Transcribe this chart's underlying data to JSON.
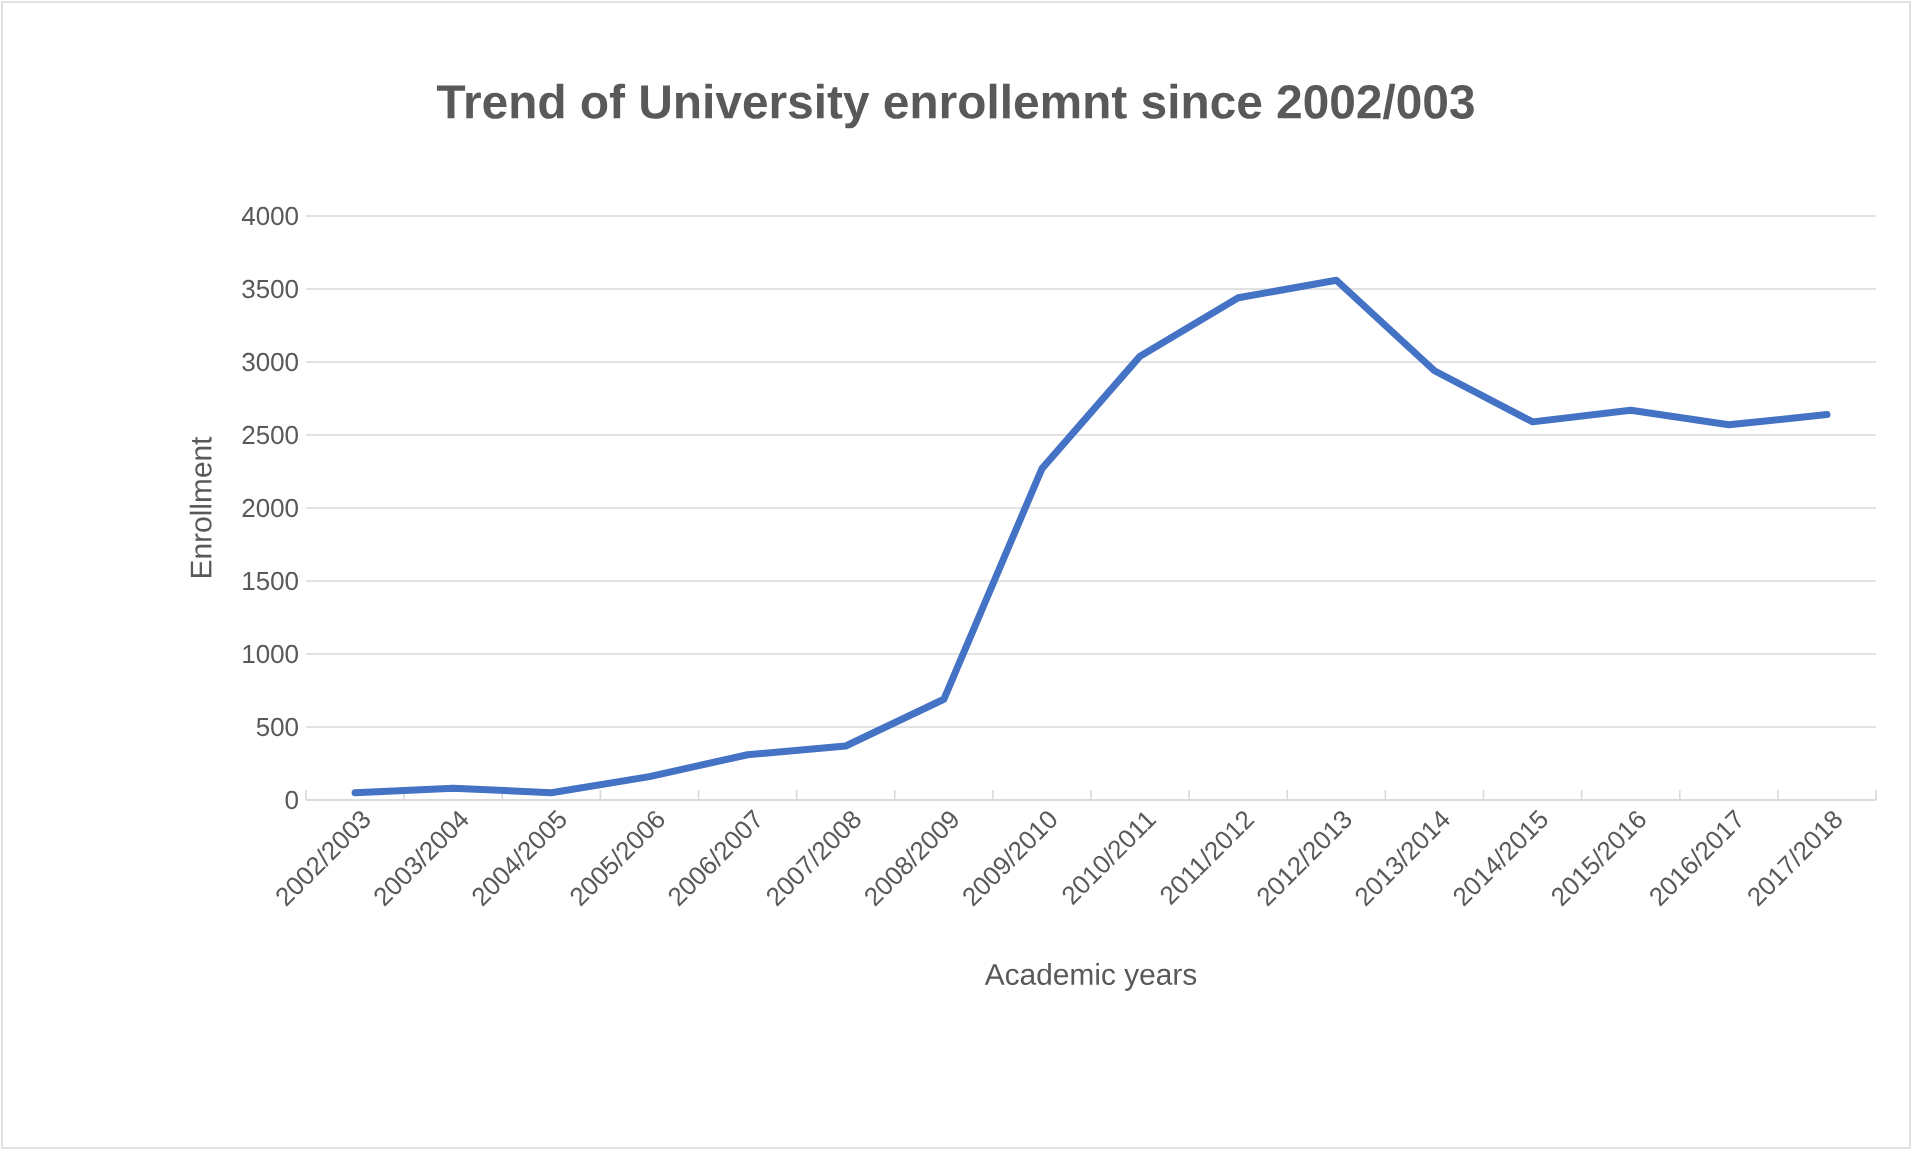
{
  "chart_data": {
    "type": "line",
    "title": "Trend of University enrollemnt since 2002/003",
    "xlabel": "Academic years",
    "ylabel": "Enrollment",
    "categories": [
      "2002/2003",
      "2003/2004",
      "2004/2005",
      "2005/2006",
      "2006/2007",
      "2007/2008",
      "2008/2009",
      "2009/2010",
      "2010/2011",
      "2011/2012",
      "2012/2013",
      "2013/2014",
      "2014/2015",
      "2015/2016",
      "2016/2017",
      "2017/2018"
    ],
    "series": [
      {
        "color": "#4472c4",
        "values": [
          50,
          80,
          50,
          160,
          310,
          370,
          690,
          2270,
          3040,
          3440,
          3560,
          2940,
          2590,
          2670,
          2570,
          2640
        ]
      }
    ],
    "ylim": [
      0,
      4000
    ],
    "yticks": [
      0,
      500,
      1000,
      1500,
      2000,
      2500,
      3000,
      3500,
      4000
    ],
    "grid": "y",
    "marker": "none",
    "line_style": "solid"
  }
}
